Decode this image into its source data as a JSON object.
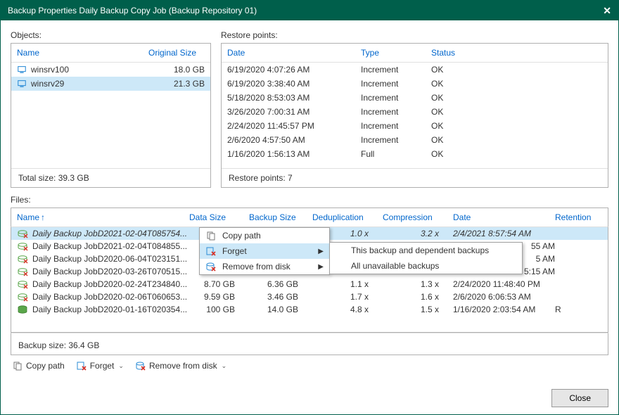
{
  "window": {
    "title": "Backup Properties Daily Backup Copy Job (Backup Repository 01)"
  },
  "colors": {
    "titlebar": "#005f4b",
    "selection": "#cde8f8",
    "header_link": "#0066cc",
    "border": "#b0b0b0"
  },
  "objects": {
    "label": "Objects:",
    "columns": {
      "name": "Name",
      "size": "Original Size"
    },
    "rows": [
      {
        "name": "winsrv100",
        "size": "18.0 GB",
        "selected": false
      },
      {
        "name": "winsrv29",
        "size": "21.3 GB",
        "selected": true
      }
    ],
    "footer": "Total size: 39.3 GB"
  },
  "restore_points": {
    "label": "Restore points:",
    "columns": {
      "date": "Date",
      "type": "Type",
      "status": "Status"
    },
    "rows": [
      {
        "date": "6/19/2020 4:07:26 AM",
        "type": "Increment",
        "status": "OK"
      },
      {
        "date": "6/19/2020 3:38:40 AM",
        "type": "Increment",
        "status": "OK"
      },
      {
        "date": "5/18/2020 8:53:03 AM",
        "type": "Increment",
        "status": "OK"
      },
      {
        "date": "3/26/2020 7:00:31 AM",
        "type": "Increment",
        "status": "OK"
      },
      {
        "date": "2/24/2020 11:45:57 PM",
        "type": "Increment",
        "status": "OK"
      },
      {
        "date": "2/6/2020 4:57:50 AM",
        "type": "Increment",
        "status": "OK"
      },
      {
        "date": "1/16/2020 1:56:13 AM",
        "type": "Full",
        "status": "OK"
      }
    ],
    "footer": "Restore points: 7"
  },
  "files": {
    "label": "Files:",
    "columns": {
      "name": "Name",
      "data_size": "Data Size",
      "backup_size": "Backup Size",
      "dedup": "Deduplication",
      "compression": "Compression",
      "date": "Date",
      "retention": "Retention"
    },
    "sort_indicator": "↑",
    "rows": [
      {
        "name": "Daily Backup JobD2021-02-04T085754...",
        "data_size": "",
        "backup_size": "",
        "dedup": "1.0 x",
        "compression": "3.2 x",
        "date": "2/4/2021 8:57:54 AM",
        "retention": "",
        "selected": true
      },
      {
        "name": "Daily Backup JobD2021-02-04T084855...",
        "data_size": "",
        "backup_size": "",
        "dedup": "",
        "compression": "",
        "date": "55 AM",
        "retention": "",
        "selected": false
      },
      {
        "name": "Daily Backup JobD2020-06-04T023151...",
        "data_size": "",
        "backup_size": "",
        "dedup": "",
        "compression": "",
        "date": "5 AM",
        "retention": "",
        "selected": false
      },
      {
        "name": "Daily Backup JobD2020-03-26T070515...",
        "data_size": "",
        "backup_size": "",
        "dedup": "",
        "compression": "",
        "date": "5:15 AM",
        "retention": "",
        "selected": false
      },
      {
        "name": "Daily Backup JobD2020-02-24T234840...",
        "data_size": "8.70 GB",
        "backup_size": "6.36 GB",
        "dedup": "1.1 x",
        "compression": "1.3 x",
        "date": "2/24/2020 11:48:40 PM",
        "retention": "",
        "selected": false
      },
      {
        "name": "Daily Backup JobD2020-02-06T060653...",
        "data_size": "9.59 GB",
        "backup_size": "3.46 GB",
        "dedup": "1.7 x",
        "compression": "1.6 x",
        "date": "2/6/2020 6:06:53 AM",
        "retention": "",
        "selected": false
      },
      {
        "name": "Daily Backup JobD2020-01-16T020354...",
        "data_size": "100 GB",
        "backup_size": "14.0 GB",
        "dedup": "4.8 x",
        "compression": "1.5 x",
        "date": "1/16/2020 2:03:54 AM",
        "retention": "R",
        "selected": false
      }
    ],
    "footer": "Backup size: 36.4 GB"
  },
  "context_menu": {
    "items": [
      {
        "label": "Copy path",
        "has_submenu": false,
        "hover": false
      },
      {
        "label": "Forget",
        "has_submenu": true,
        "hover": true
      },
      {
        "label": "Remove from disk",
        "has_submenu": true,
        "hover": false
      }
    ],
    "submenu": [
      {
        "label": "This backup and dependent backups",
        "hover": false
      },
      {
        "label": "All unavailable backups",
        "hover": false
      }
    ]
  },
  "toolbar": {
    "copy_path": "Copy path",
    "forget": "Forget",
    "remove": "Remove from disk"
  },
  "buttons": {
    "close": "Close"
  }
}
